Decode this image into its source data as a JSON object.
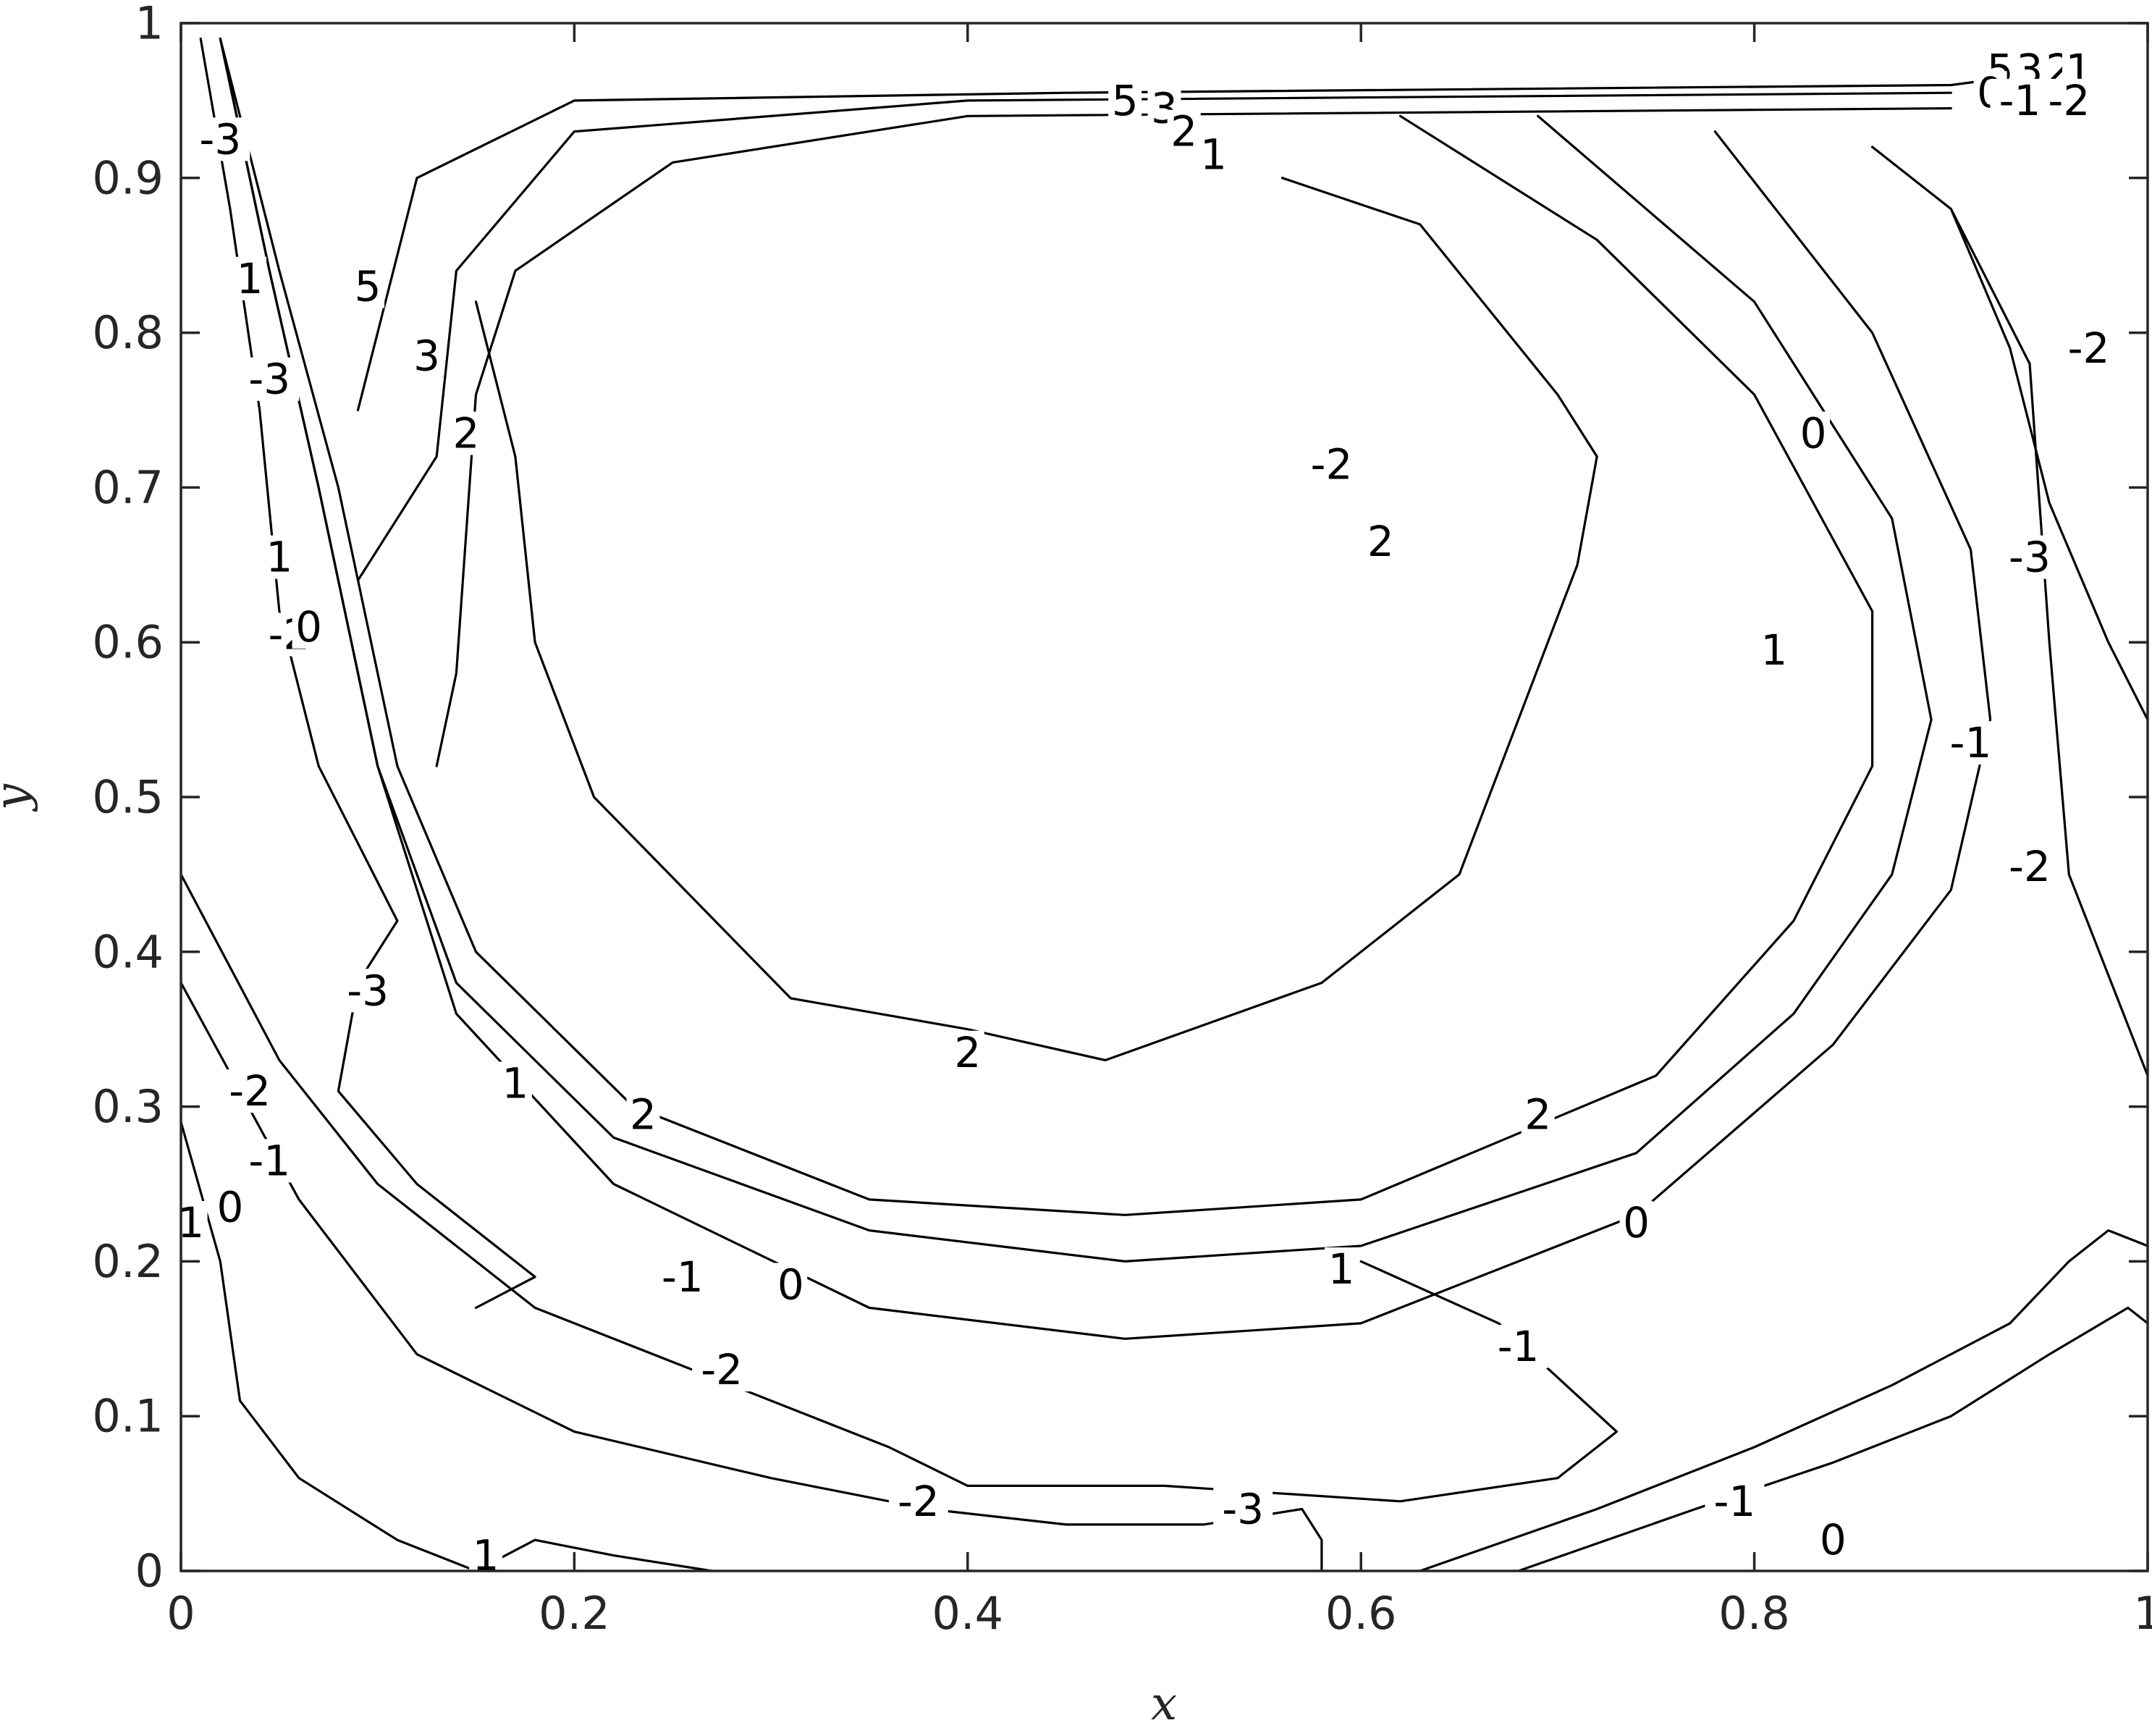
{
  "chart_data": {
    "type": "contour",
    "xlabel": "x",
    "ylabel": "y",
    "xlim": [
      0,
      1
    ],
    "ylim": [
      0,
      1
    ],
    "xticks": [
      "0",
      "0.2",
      "0.4",
      "0.6",
      "0.8",
      "1"
    ],
    "yticks": [
      "0",
      "0.1",
      "0.2",
      "0.3",
      "0.4",
      "0.5",
      "0.6",
      "0.7",
      "0.8",
      "0.9",
      "1"
    ],
    "color": "#000000",
    "contours": [
      {
        "level": 5,
        "points": [
          [
            0.09,
            0.75
          ],
          [
            0.12,
            0.9
          ],
          [
            0.2,
            0.95
          ],
          [
            0.45,
            0.955
          ],
          [
            0.9,
            0.96
          ],
          [
            0.96,
            0.97
          ]
        ]
      },
      {
        "level": 3,
        "points": [
          [
            0.09,
            0.64
          ],
          [
            0.13,
            0.72
          ],
          [
            0.14,
            0.84
          ],
          [
            0.2,
            0.93
          ],
          [
            0.4,
            0.95
          ],
          [
            0.9,
            0.955
          ]
        ]
      },
      {
        "level": 2,
        "points": [
          [
            0.13,
            0.52
          ],
          [
            0.14,
            0.58
          ],
          [
            0.15,
            0.76
          ],
          [
            0.17,
            0.84
          ],
          [
            0.25,
            0.91
          ],
          [
            0.4,
            0.94
          ],
          [
            0.9,
            0.945
          ]
        ]
      },
      {
        "level": 1,
        "points": [
          [
            0.15,
            0.17
          ],
          [
            0.18,
            0.19
          ],
          [
            0.12,
            0.25
          ],
          [
            0.08,
            0.31
          ],
          [
            0.09,
            0.38
          ],
          [
            0.11,
            0.42
          ],
          [
            0.07,
            0.52
          ],
          [
            0.05,
            0.62
          ],
          [
            0.04,
            0.75
          ],
          [
            0.025,
            0.88
          ],
          [
            0.01,
            0.99
          ]
        ]
      },
      {
        "level": 1,
        "points": [
          [
            0.62,
            0.94
          ],
          [
            0.72,
            0.86
          ],
          [
            0.8,
            0.76
          ],
          [
            0.86,
            0.62
          ],
          [
            0.86,
            0.52
          ],
          [
            0.82,
            0.42
          ],
          [
            0.75,
            0.32
          ],
          [
            0.6,
            0.24
          ],
          [
            0.48,
            0.23
          ],
          [
            0.35,
            0.24
          ],
          [
            0.23,
            0.3
          ],
          [
            0.15,
            0.4
          ],
          [
            0.11,
            0.52
          ],
          [
            0.08,
            0.7
          ],
          [
            0.05,
            0.84
          ],
          [
            0.02,
            0.99
          ]
        ]
      },
      {
        "level": 0,
        "points": [
          [
            0.69,
            0.94
          ],
          [
            0.8,
            0.82
          ],
          [
            0.87,
            0.68
          ],
          [
            0.89,
            0.55
          ],
          [
            0.87,
            0.45
          ],
          [
            0.82,
            0.36
          ],
          [
            0.74,
            0.27
          ],
          [
            0.6,
            0.21
          ],
          [
            0.48,
            0.2
          ],
          [
            0.35,
            0.22
          ],
          [
            0.22,
            0.28
          ],
          [
            0.14,
            0.38
          ],
          [
            0.1,
            0.52
          ],
          [
            0.07,
            0.7
          ],
          [
            0.045,
            0.84
          ],
          [
            0.02,
            0.99
          ]
        ]
      },
      {
        "level": -1,
        "points": [
          [
            0.78,
            0.93
          ],
          [
            0.86,
            0.8
          ],
          [
            0.91,
            0.66
          ],
          [
            0.92,
            0.55
          ],
          [
            0.9,
            0.44
          ],
          [
            0.84,
            0.34
          ],
          [
            0.74,
            0.23
          ],
          [
            0.6,
            0.16
          ],
          [
            0.48,
            0.15
          ],
          [
            0.35,
            0.17
          ],
          [
            0.22,
            0.25
          ],
          [
            0.14,
            0.36
          ],
          [
            0.1,
            0.52
          ],
          [
            0.07,
            0.7
          ],
          [
            0.045,
            0.84
          ],
          [
            0.02,
            0.99
          ]
        ]
      },
      {
        "level": -2,
        "points": [
          [
            0.56,
            0.9
          ],
          [
            0.63,
            0.87
          ],
          [
            0.7,
            0.76
          ],
          [
            0.72,
            0.72
          ],
          [
            0.71,
            0.65
          ],
          [
            0.68,
            0.55
          ],
          [
            0.65,
            0.45
          ],
          [
            0.58,
            0.38
          ],
          [
            0.47,
            0.33
          ],
          [
            0.4,
            0.35
          ],
          [
            0.31,
            0.37
          ],
          [
            0.21,
            0.5
          ],
          [
            0.18,
            0.6
          ],
          [
            0.17,
            0.72
          ],
          [
            0.15,
            0.82
          ]
        ]
      },
      {
        "level": -2,
        "points": [
          [
            0.9,
            0.88
          ],
          [
            0.94,
            0.78
          ],
          [
            0.95,
            0.6
          ],
          [
            0.96,
            0.45
          ],
          [
            1.0,
            0.32
          ]
        ]
      },
      {
        "level": -2,
        "points": [
          [
            0.0,
            0.45
          ],
          [
            0.05,
            0.33
          ],
          [
            0.1,
            0.25
          ],
          [
            0.18,
            0.17
          ],
          [
            0.28,
            0.12
          ],
          [
            0.36,
            0.08
          ],
          [
            0.4,
            0.055
          ],
          [
            0.5,
            0.055
          ],
          [
            0.62,
            0.045
          ],
          [
            0.7,
            0.06
          ],
          [
            0.73,
            0.09
          ],
          [
            0.67,
            0.16
          ],
          [
            0.6,
            0.2
          ]
        ]
      },
      {
        "level": -3,
        "points": [
          [
            0.86,
            0.92
          ],
          [
            0.9,
            0.88
          ],
          [
            0.93,
            0.79
          ],
          [
            0.95,
            0.69
          ],
          [
            0.98,
            0.6
          ],
          [
            1.0,
            0.55
          ]
        ]
      },
      {
        "level": -3,
        "points": [
          [
            0.0,
            0.38
          ],
          [
            0.06,
            0.24
          ],
          [
            0.12,
            0.14
          ],
          [
            0.2,
            0.09
          ],
          [
            0.3,
            0.06
          ],
          [
            0.38,
            0.04
          ],
          [
            0.45,
            0.03
          ],
          [
            0.52,
            0.03
          ],
          [
            0.57,
            0.04
          ],
          [
            0.58,
            0.02
          ],
          [
            0.58,
            0.0
          ]
        ]
      },
      {
        "level": 0,
        "points": [
          [
            0.63,
            0.0
          ],
          [
            0.72,
            0.04
          ],
          [
            0.8,
            0.08
          ],
          [
            0.87,
            0.12
          ],
          [
            0.93,
            0.16
          ],
          [
            0.96,
            0.2
          ],
          [
            0.98,
            0.22
          ],
          [
            1.0,
            0.21
          ]
        ]
      },
      {
        "level": -1,
        "points": [
          [
            0.68,
            0.0
          ],
          [
            0.77,
            0.04
          ],
          [
            0.84,
            0.07
          ],
          [
            0.9,
            0.1
          ],
          [
            0.95,
            0.14
          ],
          [
            0.99,
            0.17
          ],
          [
            1.0,
            0.16
          ]
        ]
      },
      {
        "level": 1,
        "points": [
          [
            0.15,
            0.0
          ],
          [
            0.18,
            0.02
          ],
          [
            0.22,
            0.01
          ],
          [
            0.27,
            0.0
          ]
        ]
      },
      {
        "level": 0,
        "points": [
          [
            0.0,
            0.29
          ],
          [
            0.02,
            0.2
          ],
          [
            0.03,
            0.11
          ],
          [
            0.06,
            0.06
          ],
          [
            0.11,
            0.02
          ],
          [
            0.15,
            0.0
          ]
        ]
      }
    ],
    "contour_labels": [
      {
        "text": "5",
        "x": 0.48,
        "y": 0.95
      },
      {
        "text": "3",
        "x": 0.5,
        "y": 0.945
      },
      {
        "text": "2",
        "x": 0.51,
        "y": 0.93
      },
      {
        "text": "1",
        "x": 0.525,
        "y": 0.915
      },
      {
        "text": "5",
        "x": 0.095,
        "y": 0.83
      },
      {
        "text": "3",
        "x": 0.125,
        "y": 0.785
      },
      {
        "text": "2",
        "x": 0.145,
        "y": 0.735
      },
      {
        "text": "-3",
        "x": 0.02,
        "y": 0.925
      },
      {
        "text": "1",
        "x": 0.035,
        "y": 0.835
      },
      {
        "text": "-3",
        "x": 0.045,
        "y": 0.77
      },
      {
        "text": "1",
        "x": 0.05,
        "y": 0.655
      },
      {
        "text": "-2",
        "x": 0.055,
        "y": 0.605
      },
      {
        "text": "0",
        "x": 0.065,
        "y": 0.61
      },
      {
        "text": "-2",
        "x": 0.585,
        "y": 0.715
      },
      {
        "text": "2",
        "x": 0.61,
        "y": 0.665
      },
      {
        "text": "0",
        "x": 0.83,
        "y": 0.735
      },
      {
        "text": "1",
        "x": 0.81,
        "y": 0.595
      },
      {
        "text": "-1",
        "x": 0.91,
        "y": 0.535
      },
      {
        "text": "-2",
        "x": 0.94,
        "y": 0.455
      },
      {
        "text": "-3",
        "x": 0.94,
        "y": 0.655
      },
      {
        "text": "-2",
        "x": 0.97,
        "y": 0.79
      },
      {
        "text": "-3",
        "x": 0.095,
        "y": 0.375
      },
      {
        "text": "1",
        "x": 0.17,
        "y": 0.315
      },
      {
        "text": "2",
        "x": 0.235,
        "y": 0.295
      },
      {
        "text": "2",
        "x": 0.4,
        "y": 0.335
      },
      {
        "text": "2",
        "x": 0.69,
        "y": 0.295
      },
      {
        "text": "1",
        "x": 0.59,
        "y": 0.195
      },
      {
        "text": "0",
        "x": 0.74,
        "y": 0.225
      },
      {
        "text": "-1",
        "x": 0.68,
        "y": 0.145
      },
      {
        "text": "0",
        "x": 0.31,
        "y": 0.185
      },
      {
        "text": "-1",
        "x": 0.255,
        "y": 0.19
      },
      {
        "text": "-2",
        "x": 0.275,
        "y": 0.13
      },
      {
        "text": "-2",
        "x": 0.035,
        "y": 0.31
      },
      {
        "text": "-1",
        "x": 0.045,
        "y": 0.265
      },
      {
        "text": "0",
        "x": 0.025,
        "y": 0.235
      },
      {
        "text": "1",
        "x": 0.005,
        "y": 0.225
      },
      {
        "text": "-2",
        "x": 0.375,
        "y": 0.045
      },
      {
        "text": "-3",
        "x": 0.54,
        "y": 0.04
      },
      {
        "text": "-1",
        "x": 0.79,
        "y": 0.045
      },
      {
        "text": "0",
        "x": 0.84,
        "y": 0.02
      },
      {
        "text": "1",
        "x": 0.155,
        "y": 0.01
      },
      {
        "text": "5",
        "x": 0.925,
        "y": 0.97
      },
      {
        "text": "3",
        "x": 0.94,
        "y": 0.97
      },
      {
        "text": "2",
        "x": 0.955,
        "y": 0.97
      },
      {
        "text": "1",
        "x": 0.965,
        "y": 0.97
      },
      {
        "text": "0",
        "x": 0.92,
        "y": 0.955
      },
      {
        "text": "-1",
        "x": 0.935,
        "y": 0.95
      },
      {
        "text": "-2",
        "x": 0.96,
        "y": 0.95
      }
    ]
  }
}
